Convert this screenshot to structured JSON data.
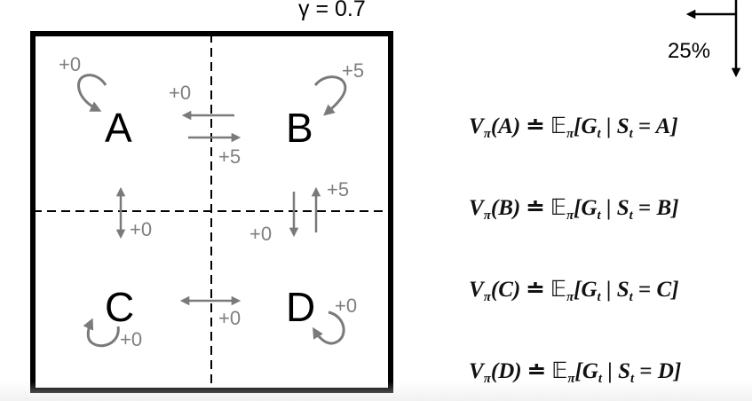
{
  "gamma_label": "γ = 0.7",
  "policy_prob_label": "25%",
  "states": {
    "A": "A",
    "B": "B",
    "C": "C",
    "D": "D"
  },
  "rewards": {
    "A_self": "+0",
    "A_to_B": "+0",
    "B_to_A": "+5",
    "B_self": "+5",
    "A_C": "+0",
    "D_to_B": "+5",
    "B_to_D": "+0",
    "C_D": "+0",
    "C_self": "+0",
    "D_self": "+0"
  },
  "equations": [
    {
      "state": "A"
    },
    {
      "state": "B"
    },
    {
      "state": "C"
    },
    {
      "state": "D"
    }
  ],
  "colors": {
    "arrow": "#7a7a7a",
    "border": "#000000"
  }
}
